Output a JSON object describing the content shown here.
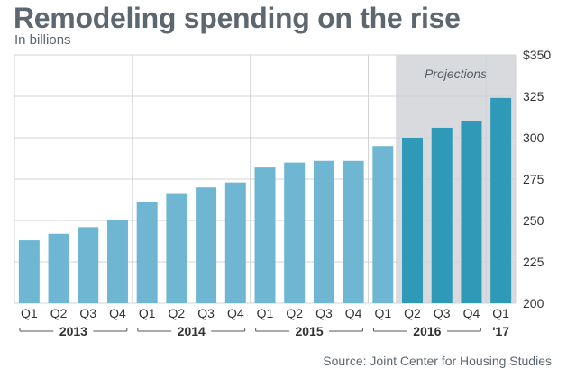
{
  "colors": {
    "bar_actual": "#6fb6d2",
    "bar_projected": "#2f9ab8",
    "projection_band": "#d9dade",
    "grid": "#cfd3d6",
    "title": "#5d6770"
  },
  "chart_data": {
    "type": "bar",
    "title": "Remodeling spending on the rise",
    "subtitle": "In billions",
    "source": "Source: Joint Center for Housing Studies",
    "projection_label": "Projections",
    "projection_start_index": 13,
    "y_tick_labels": [
      "$350",
      "325",
      "300",
      "275",
      "250",
      "225",
      "200"
    ],
    "y_tick_values": [
      350,
      325,
      300,
      275,
      250,
      225,
      200
    ],
    "ylim": [
      200,
      350
    ],
    "grid": true,
    "categories": [
      "Q1",
      "Q2",
      "Q3",
      "Q4",
      "Q1",
      "Q2",
      "Q3",
      "Q4",
      "Q1",
      "Q2",
      "Q3",
      "Q4",
      "Q1",
      "Q2",
      "Q3",
      "Q4",
      "Q1"
    ],
    "values": [
      238,
      242,
      246,
      250,
      261,
      266,
      270,
      273,
      282,
      285,
      286,
      286,
      295,
      300,
      306,
      310,
      324
    ],
    "year_groups": [
      {
        "label": "2013",
        "start": 0,
        "end": 3
      },
      {
        "label": "2014",
        "start": 4,
        "end": 7
      },
      {
        "label": "2015",
        "start": 8,
        "end": 11
      },
      {
        "label": "2016",
        "start": 12,
        "end": 15
      },
      {
        "label": "'17",
        "start": 16,
        "end": 16
      }
    ]
  }
}
